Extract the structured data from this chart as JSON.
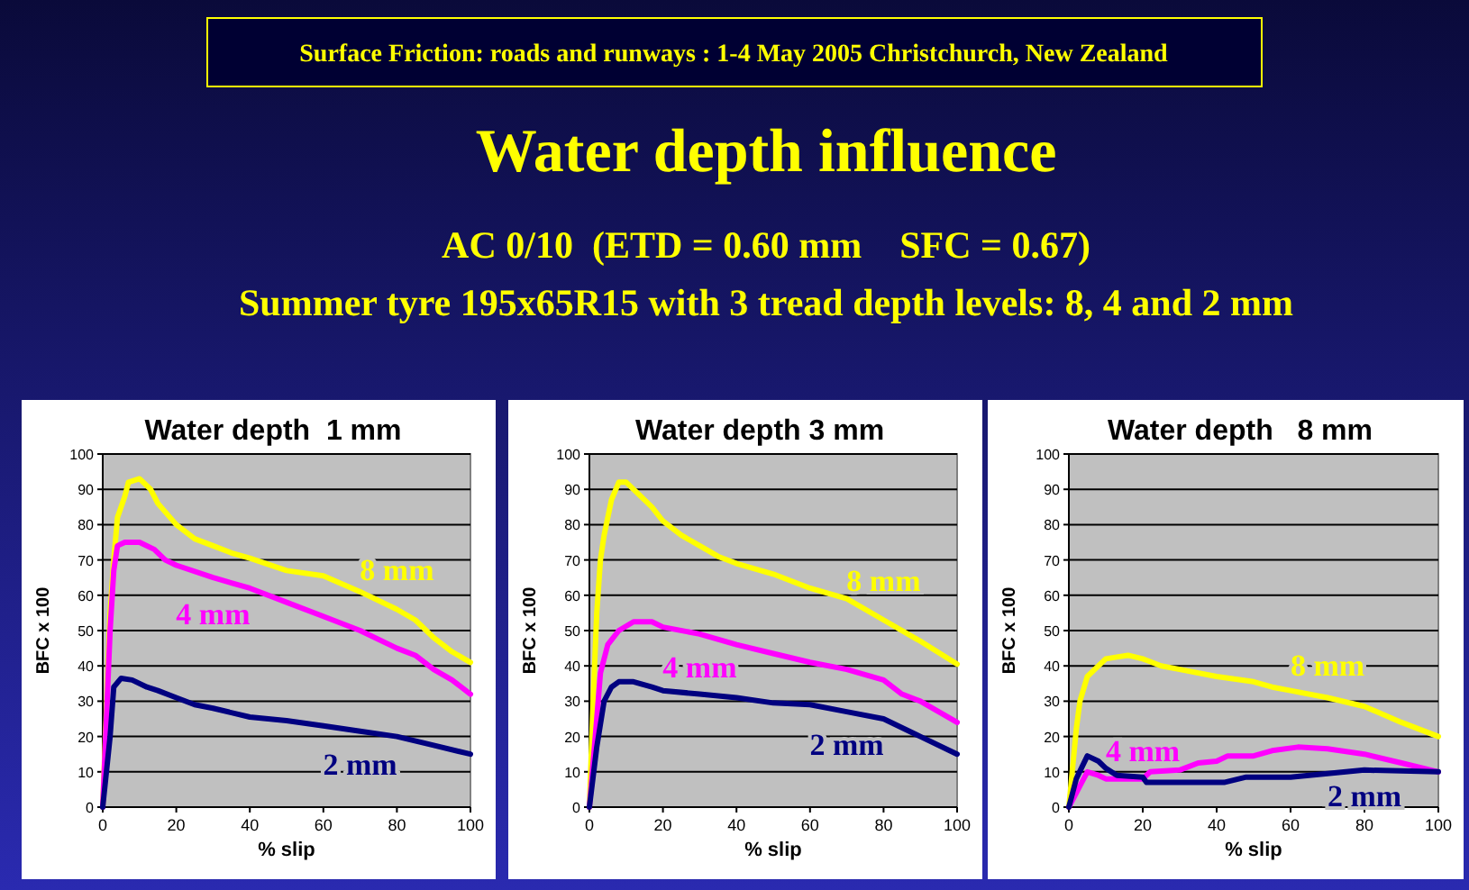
{
  "chart_data": [
    {
      "type": "other",
      "title": "Water depth influence",
      "subtitle": "AC 0/10  (ETD = 0.60 mm    SFC = 0.67)",
      "annotations": [
        "Surface Friction:  roads and runways : 1-4 May 2005  Christchurch, New Zealand",
        "Summer tyre 195x65R15 with 3 tread depth levels: 8, 4 and 2 mm"
      ]
    },
    {
      "type": "line",
      "title": "Water depth  1 mm",
      "xlabel": "% slip",
      "ylabel": "BFC x 100",
      "xlim": [
        0,
        100
      ],
      "ylim": [
        0,
        100
      ],
      "xticks": [
        0,
        20,
        40,
        60,
        80,
        100
      ],
      "yticks": [
        0,
        10,
        20,
        30,
        40,
        50,
        60,
        70,
        80,
        90,
        100
      ],
      "grid": "y",
      "series": [
        {
          "name": "8 mm",
          "color": "#ffff00",
          "x": [
            0,
            2,
            3,
            4,
            6,
            7,
            10,
            13,
            15,
            20,
            25,
            30,
            35,
            40,
            50,
            60,
            70,
            80,
            85,
            90,
            95,
            100
          ],
          "values": [
            0,
            55,
            70,
            82,
            88,
            92,
            93,
            90,
            86,
            80,
            76,
            74,
            72,
            70.5,
            67,
            65.5,
            61,
            56,
            53,
            48,
            44,
            41
          ]
        },
        {
          "name": "4 mm",
          "color": "#ff00ff",
          "x": [
            0,
            2,
            3,
            4,
            6,
            10,
            14,
            17,
            20,
            30,
            40,
            50,
            60,
            70,
            80,
            85,
            90,
            95,
            100
          ],
          "values": [
            0,
            50,
            67,
            74,
            75,
            75,
            73,
            70,
            68.5,
            65,
            62,
            58,
            54,
            50,
            45,
            43,
            39,
            36,
            32
          ]
        },
        {
          "name": "2 mm",
          "color": "#000080",
          "x": [
            0,
            2,
            3,
            5,
            8,
            12,
            15,
            20,
            25,
            30,
            40,
            50,
            60,
            70,
            80,
            90,
            100
          ],
          "values": [
            0,
            20,
            34,
            36.5,
            36,
            34,
            33,
            31,
            29,
            28,
            25.5,
            24.5,
            23,
            21.5,
            20,
            17.5,
            15
          ]
        }
      ]
    },
    {
      "type": "line",
      "title": "Water depth 3 mm",
      "xlabel": "% slip",
      "ylabel": "BFC x 100",
      "xlim": [
        0,
        100
      ],
      "ylim": [
        0,
        100
      ],
      "xticks": [
        0,
        20,
        40,
        60,
        80,
        100
      ],
      "yticks": [
        0,
        10,
        20,
        30,
        40,
        50,
        60,
        70,
        80,
        90,
        100
      ],
      "grid": "y",
      "series": [
        {
          "name": "8 mm",
          "color": "#ffff00",
          "x": [
            0,
            1,
            2,
            3,
            4,
            6,
            8,
            10,
            13,
            17,
            20,
            25,
            30,
            35,
            40,
            50,
            60,
            70,
            80,
            90,
            100
          ],
          "values": [
            0,
            30,
            55,
            70,
            77,
            87,
            92,
            92,
            89,
            85,
            81,
            77,
            74,
            71,
            69,
            66,
            62,
            59,
            53,
            47,
            40.5
          ]
        },
        {
          "name": "4 mm",
          "color": "#ff00ff",
          "x": [
            0,
            2,
            3,
            5,
            8,
            12,
            17,
            20,
            30,
            40,
            50,
            60,
            70,
            80,
            85,
            90,
            100
          ],
          "values": [
            0,
            25,
            38,
            46,
            50,
            52.5,
            52.5,
            51,
            49,
            46,
            43.5,
            41,
            39,
            36,
            32,
            30,
            24
          ]
        },
        {
          "name": "2 mm",
          "color": "#000080",
          "x": [
            0,
            2,
            4,
            6,
            8,
            12,
            17,
            20,
            30,
            40,
            50,
            60,
            70,
            80,
            90,
            100
          ],
          "values": [
            0,
            17,
            30,
            34,
            35.5,
            35.5,
            34,
            33,
            32,
            31,
            29.5,
            29,
            27,
            25,
            20,
            15
          ]
        }
      ]
    },
    {
      "type": "line",
      "title": "Water depth   8 mm",
      "xlabel": "% slip",
      "ylabel": "BFC x 100",
      "xlim": [
        0,
        100
      ],
      "ylim": [
        0,
        100
      ],
      "xticks": [
        0,
        20,
        40,
        60,
        80,
        100
      ],
      "yticks": [
        0,
        10,
        20,
        30,
        40,
        50,
        60,
        70,
        80,
        90,
        100
      ],
      "grid": "y",
      "series": [
        {
          "name": "8 mm",
          "color": "#ffff00",
          "x": [
            0,
            2,
            3,
            5,
            8,
            10,
            13,
            16,
            20,
            25,
            30,
            40,
            50,
            55,
            60,
            70,
            80,
            90,
            100
          ],
          "values": [
            0,
            22,
            30,
            37,
            40,
            42,
            42.5,
            43,
            42,
            40,
            39,
            37,
            35.5,
            34,
            33,
            31,
            28.5,
            24,
            20
          ]
        },
        {
          "name": "4 mm",
          "color": "#ff00ff",
          "x": [
            0,
            3,
            5,
            8,
            10,
            15,
            20,
            22,
            30,
            35,
            40,
            43,
            50,
            55,
            62,
            70,
            80,
            90,
            100
          ],
          "values": [
            0,
            6,
            10,
            9,
            8,
            8,
            8,
            10,
            10.5,
            12.5,
            13,
            14.5,
            14.5,
            16,
            17,
            16.5,
            15,
            12.5,
            10
          ]
        },
        {
          "name": "2 mm",
          "color": "#000080",
          "x": [
            0,
            2,
            5,
            8,
            10,
            13,
            20,
            21,
            30,
            42,
            48,
            60,
            65,
            75,
            80,
            100
          ],
          "values": [
            0,
            8,
            14.5,
            13,
            11,
            9,
            8.5,
            7,
            7,
            7,
            8.5,
            8.5,
            9,
            10,
            10.5,
            10
          ]
        }
      ]
    }
  ]
}
